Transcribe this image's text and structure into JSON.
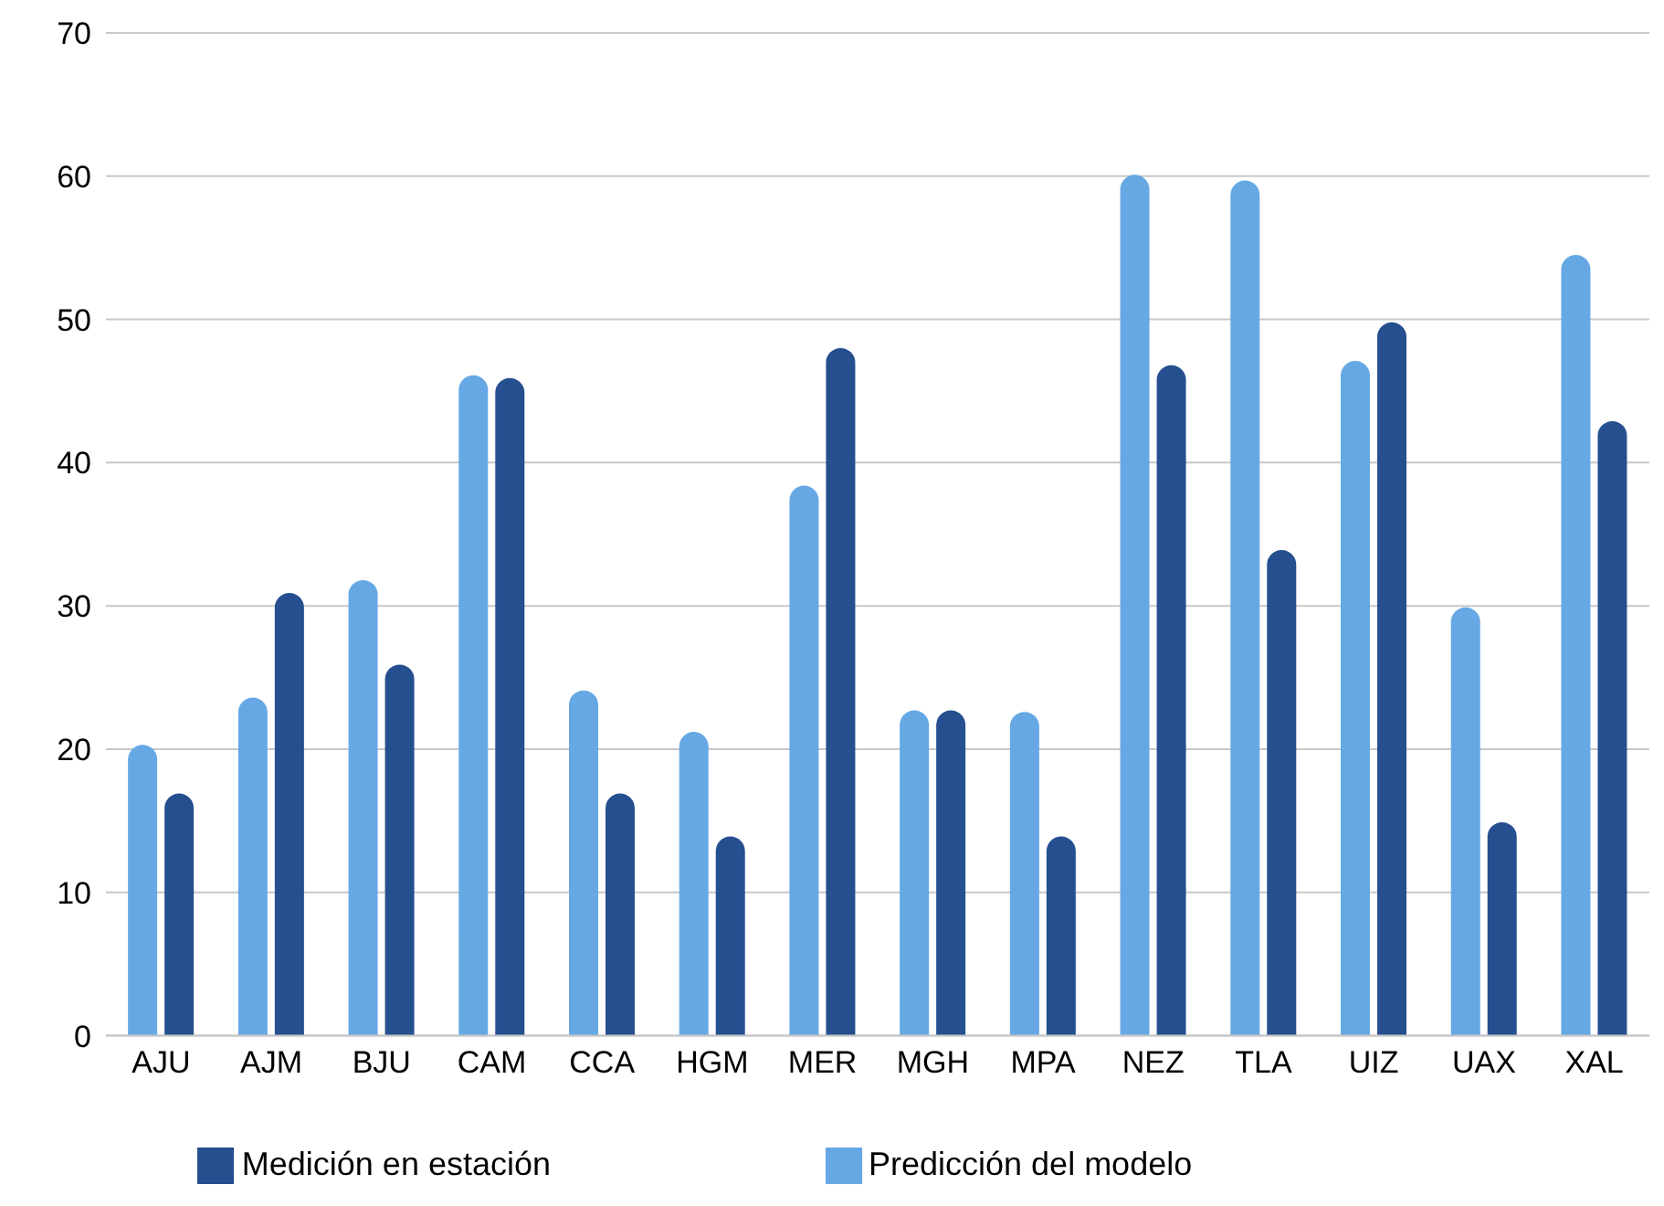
{
  "chart_data": {
    "type": "bar",
    "categories": [
      "AJU",
      "AJM",
      "BJU",
      "CAM",
      "CCA",
      "HGM",
      "MER",
      "MGH",
      "MPA",
      "NEZ",
      "TLA",
      "UIZ",
      "UAX",
      "XAL"
    ],
    "series": [
      {
        "name": "Predicción del modelo",
        "color": "#66a8e4",
        "values": [
          20.3,
          23.6,
          31.8,
          46.1,
          24.1,
          21.2,
          38.4,
          22.7,
          22.6,
          60.1,
          59.7,
          47.1,
          29.9,
          54.5
        ]
      },
      {
        "name": "Medición en estación",
        "color": "#254f8f",
        "values": [
          16.9,
          30.9,
          25.9,
          45.9,
          16.9,
          13.9,
          48.0,
          22.7,
          13.9,
          46.8,
          33.9,
          49.8,
          14.9,
          42.9
        ]
      }
    ],
    "ylim": [
      0,
      70
    ],
    "yticks": [
      0,
      10,
      20,
      30,
      40,
      50,
      60,
      70
    ],
    "grid": "y",
    "legend": "bottom"
  }
}
